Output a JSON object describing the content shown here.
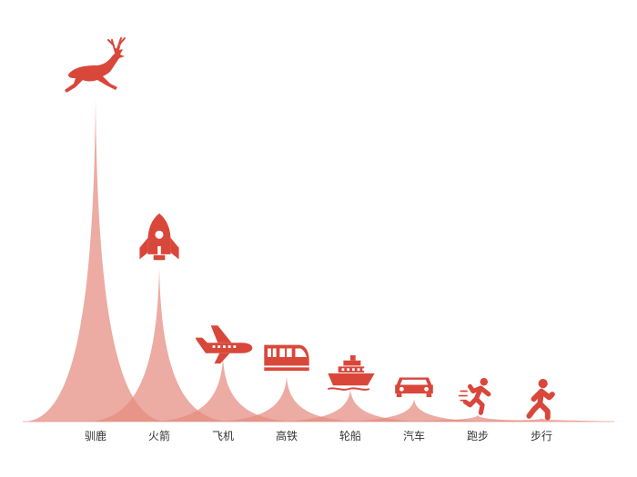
{
  "chart_data": {
    "type": "bar",
    "variant": "pictorial-peak",
    "categories": [
      "驯鹿",
      "火箭",
      "飞机",
      "高铁",
      "轮船",
      "汽车",
      "跑步",
      "步行"
    ],
    "icons": [
      "reindeer-icon",
      "rocket-icon",
      "airplane-icon",
      "train-icon",
      "ship-icon",
      "car-icon",
      "runner-icon",
      "walker-icon"
    ],
    "values": [
      100,
      48,
      20,
      14,
      10,
      7,
      2,
      1
    ],
    "ylim": [
      0,
      100
    ],
    "grid": false,
    "colors": {
      "peak": "#e58a80",
      "icon": "#d9473b",
      "axis": "#333333"
    }
  }
}
